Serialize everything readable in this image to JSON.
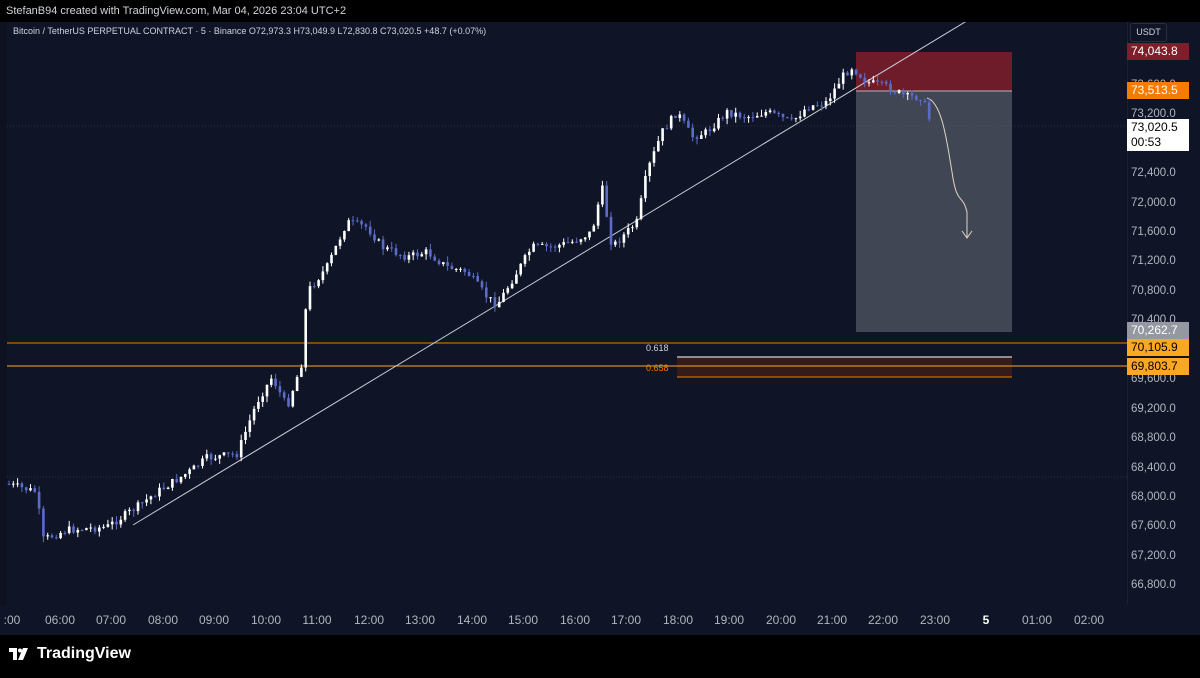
{
  "header": {
    "credit": "StefanB94 created with TradingView.com, Mar 04, 2026 23:04 UTC+2"
  },
  "legend": {
    "text": "Bitcoin / TetherUS PERPETUAL CONTRACT · 5 · Binance  O72,973.3  H73,049.9  L72,830.8  C73,020.5  +48.7 (+0.07%)"
  },
  "axis": {
    "currency": "USDT",
    "ticks": [
      "73,600.0",
      "73,200.0",
      "72,400.0",
      "72,000.0",
      "71,600.0",
      "71,200.0",
      "70,800.0",
      "70,400.0",
      "69,600.0",
      "69,200.0",
      "68,800.0",
      "68,400.0",
      "68,000.0",
      "67,600.0",
      "67,200.0",
      "66,800.0"
    ],
    "price_tags": [
      {
        "label": "74,043.8",
        "bg": "#7f1d2a",
        "fg": "#ffffff"
      },
      {
        "label": "73,513.5",
        "bg": "#f57c00",
        "fg": "#ffffff"
      },
      {
        "label": "73,020.5",
        "bg": "#ffffff",
        "fg": "#000000"
      },
      {
        "label": "00:53",
        "bg": "#ffffff",
        "fg": "#000000"
      },
      {
        "label": "70,262.7",
        "bg": "#9598a1",
        "fg": "#ffffff"
      },
      {
        "label": "70,105.9",
        "bg": "#f9a825",
        "fg": "#000000"
      },
      {
        "label": "69,803.7",
        "bg": "#f9a825",
        "fg": "#000000"
      }
    ]
  },
  "time_axis": {
    "ticks": [
      ":00",
      "06:00",
      "07:00",
      "08:00",
      "09:00",
      "10:00",
      "11:00",
      "12:00",
      "13:00",
      "14:00",
      "15:00",
      "16:00",
      "17:00",
      "18:00",
      "19:00",
      "20:00",
      "21:00",
      "22:00",
      "23:00",
      "5",
      "01:00",
      "02:00"
    ]
  },
  "fib": {
    "level_1": "0.618",
    "level_2": "0.658"
  },
  "footer": {
    "brand": "TradingView"
  },
  "colors": {
    "bull": "#ffffff",
    "bear": "#5b6bc7",
    "stop": "#7f1d2a",
    "target": "#3a3f4b",
    "fib": "#f57c00"
  }
}
